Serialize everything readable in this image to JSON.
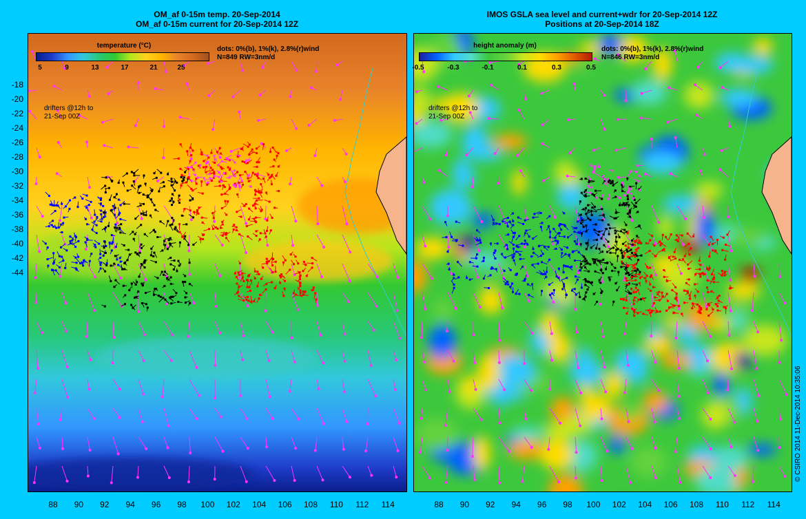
{
  "left_panel": {
    "title_line1": "OM_af 0-15m temp. 20-Sep-2014",
    "title_line2": "OM_af 0-15m current for 20-Sep-2014 12Z",
    "colorbar_title": "temperature (°C)",
    "colorbar_ticks": [
      "5",
      "9",
      "13",
      "17",
      "21",
      "25"
    ],
    "info_line1": "dots: 0%(b), 1%(k), 2.8%(r)wind",
    "info_line2": "N=849 RW=3nm/d",
    "drifter_note_line1": "drifters @12h to",
    "drifter_note_line2": "21-Sep 00Z"
  },
  "right_panel": {
    "title_line1": "IMOS GSLA sea level and current+wdr for 20-Sep-2014 12Z",
    "title_line2": "Positions at 20-Sep-2014 18Z",
    "colorbar_title": "height anomaly (m)",
    "colorbar_ticks": [
      "-0.5",
      "-0.3",
      "-0.1",
      "0.1",
      "0.3",
      "0.5"
    ],
    "info_line1": "dots: 0%(b), 1%(k), 2.8%(r)wind",
    "info_line2": "N=846 RW=3nm/d",
    "drifter_note_line1": "drifters @12h to",
    "drifter_note_line2": "21-Sep 00Z"
  },
  "y_axis_labels": [
    "-18",
    "-20",
    "-22",
    "-24",
    "-26",
    "-28",
    "-30",
    "-32",
    "-34",
    "-36",
    "-38",
    "-40",
    "-42",
    "-44"
  ],
  "x_axis_labels": [
    "88",
    "90",
    "92",
    "94",
    "96",
    "98",
    "100",
    "102",
    "104",
    "106",
    "108",
    "110",
    "112",
    "114"
  ],
  "credit": "© CSIRO 2014   11-Dec-2014 10:35:06",
  "colors": {
    "background": "#00ccff",
    "arrow": "#ff33ff",
    "drifter_blue": "#0000ff",
    "drifter_black": "#000000",
    "drifter_red": "#ff0000",
    "land": "#f5b48c",
    "coast": "#33cccc"
  }
}
